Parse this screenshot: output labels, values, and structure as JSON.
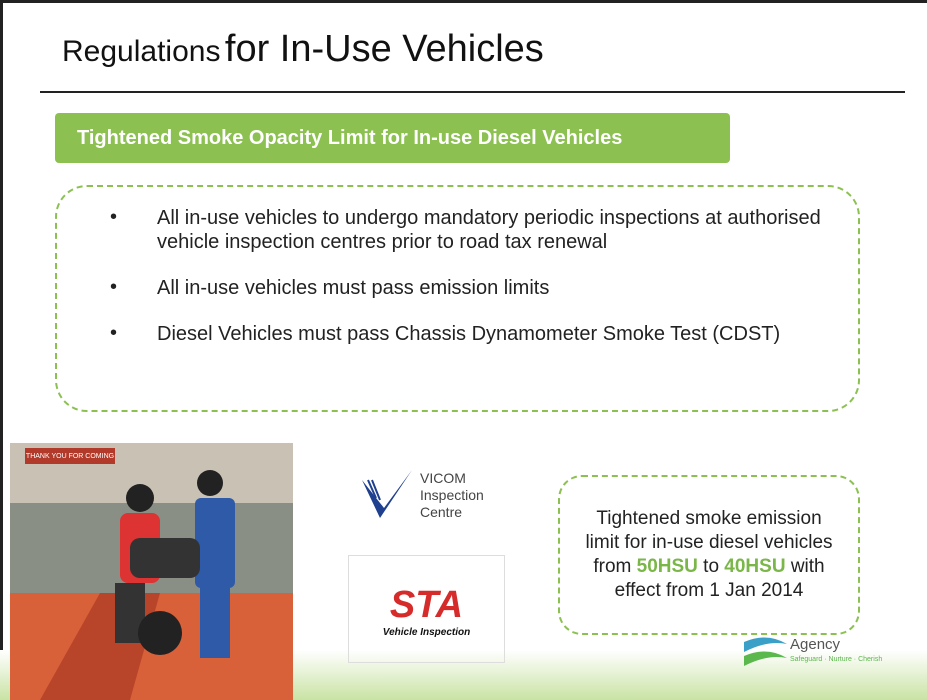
{
  "header": {
    "title_small": "Regulations",
    "title_large": "for In-Use Vehicles"
  },
  "banner": {
    "text": "Tightened Smoke Opacity Limit for In-use Diesel Vehicles"
  },
  "bullets": [
    "All in-use vehicles to undergo mandatory periodic inspections at authorised vehicle inspection centres prior to road tax renewal",
    "All in-use vehicles must pass emission limits",
    "Diesel Vehicles must pass Chassis Dynamometer Smoke Test (CDST)"
  ],
  "photo": {
    "sign": "THANK YOU FOR COMING"
  },
  "logos": {
    "vicom": [
      "VICOM",
      "Inspection",
      "Centre"
    ],
    "sta": {
      "mark": "STA",
      "caption": "Vehicle Inspection"
    },
    "nea": {
      "name": "Agency",
      "tagline": "Safeguard · Nurture · Cherish"
    }
  },
  "callout": {
    "parts": [
      "Tightened smoke emission limit for in-use diesel vehicles from ",
      "50HSU",
      " to ",
      "40HSU",
      " with effect from 1 Jan 2014"
    ]
  }
}
